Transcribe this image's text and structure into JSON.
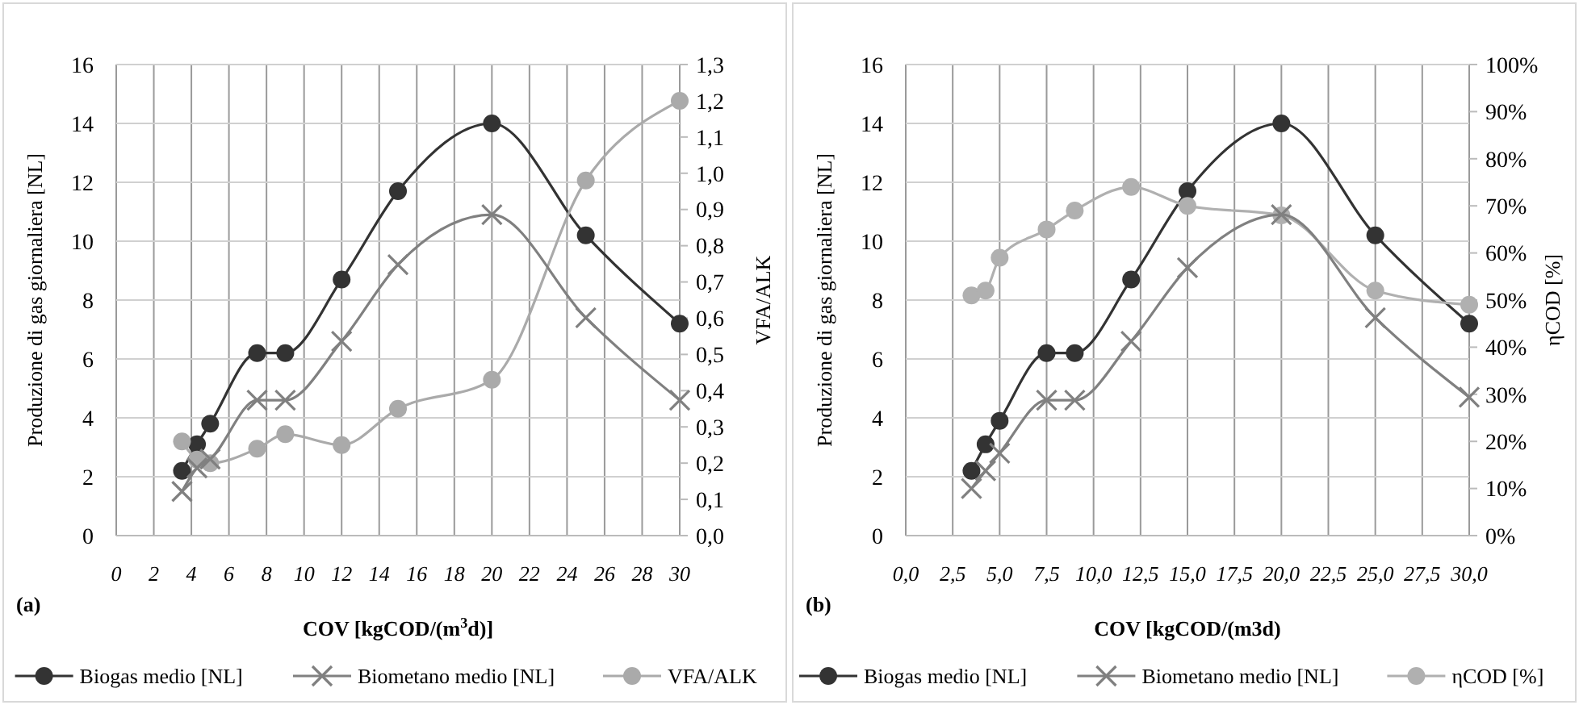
{
  "chart_data": [
    {
      "type": "line",
      "xlabel": "COV [kgCOD/(m$^{3}$d)]",
      "ylabel": "Produzione di gas giornaliera [NL]",
      "y2label": "VFA/ALK",
      "annotations": [
        "(a)"
      ],
      "x": [
        3.5,
        4.3,
        5,
        7.5,
        9,
        12,
        15,
        20,
        25,
        30
      ],
      "xlim": [
        0,
        30
      ],
      "xticks": [
        0,
        2,
        4,
        6,
        8,
        10,
        12,
        14,
        16,
        18,
        20,
        22,
        24,
        26,
        28,
        30
      ],
      "ylim": [
        0,
        16
      ],
      "yticks": [
        0,
        2,
        4,
        6,
        8,
        10,
        12,
        14,
        16
      ],
      "y2lim": [
        0,
        1.3
      ],
      "y2ticks": [
        {
          "value": 0,
          "label": "0,0"
        },
        {
          "value": 0.1,
          "label": "0,1"
        },
        {
          "value": 0.2,
          "label": "0,2"
        },
        {
          "value": 0.3,
          "label": "0,3"
        },
        {
          "value": 0.4,
          "label": "0,4"
        },
        {
          "value": 0.5,
          "label": "0,5"
        },
        {
          "value": 0.6,
          "label": "0,6"
        },
        {
          "value": 0.7,
          "label": "0,7"
        },
        {
          "value": 0.8,
          "label": "0,8"
        },
        {
          "value": 0.9,
          "label": "0,9"
        },
        {
          "value": 1,
          "label": "1,0"
        },
        {
          "value": 1.1,
          "label": "1,1"
        },
        {
          "value": 1.2,
          "label": "1,2"
        },
        {
          "value": 1.3,
          "label": "1,3"
        }
      ],
      "grid": true,
      "legend": "bottom",
      "line_style": "solid",
      "series": [
        {
          "name": "Biogas medio [NL]",
          "color": "#333333",
          "marker": "circle",
          "values": [
            2.2,
            3.1,
            3.8,
            6.2,
            6.2,
            8.7,
            11.7,
            14,
            10.2,
            7.2
          ]
        },
        {
          "name": "Biometano medio [NL]",
          "color": "#808080",
          "marker": "cross",
          "values": [
            1.5,
            2.3,
            2.6,
            4.6,
            4.6,
            6.6,
            9.2,
            10.9,
            7.4,
            4.6
          ]
        },
        {
          "name": "VFA/ALK",
          "color": "#aaaaaa",
          "marker": "circle",
          "axis": "y2",
          "values": [
            0.26,
            0.21,
            0.2,
            0.24,
            0.28,
            0.25,
            0.35,
            0.43,
            0.98,
            1.2
          ]
        }
      ]
    },
    {
      "type": "line",
      "xlabel": "COV [kgCOD/(m3d)",
      "ylabel": "Produzione di gas giornaliera [NL]",
      "y2label": "ηCOD [%]",
      "annotations": [
        "(b)"
      ],
      "x": [
        3.5,
        4.25,
        5,
        7.5,
        9,
        12,
        15,
        20,
        25,
        30
      ],
      "xlim": [
        0,
        30
      ],
      "xticks": [
        {
          "value": 0,
          "label": "0,0"
        },
        {
          "value": 2.5,
          "label": "2,5"
        },
        {
          "value": 5,
          "label": "5,0"
        },
        {
          "value": 7.5,
          "label": "7,5"
        },
        {
          "value": 10,
          "label": "10,0"
        },
        {
          "value": 12.5,
          "label": "12,5"
        },
        {
          "value": 15,
          "label": "15,0"
        },
        {
          "value": 17.5,
          "label": "17,5"
        },
        {
          "value": 20,
          "label": "20,0"
        },
        {
          "value": 22.5,
          "label": "22,5"
        },
        {
          "value": 25,
          "label": "25,0"
        },
        {
          "value": 27.5,
          "label": "27,5"
        },
        {
          "value": 30,
          "label": "30,0"
        }
      ],
      "ylim": [
        0,
        16
      ],
      "yticks": [
        0,
        2,
        4,
        6,
        8,
        10,
        12,
        14,
        16
      ],
      "y2lim": [
        0,
        100
      ],
      "y2ticks": [
        {
          "value": 0,
          "label": "0%"
        },
        {
          "value": 10,
          "label": "10%"
        },
        {
          "value": 20,
          "label": "20%"
        },
        {
          "value": 30,
          "label": "30%"
        },
        {
          "value": 40,
          "label": "40%"
        },
        {
          "value": 50,
          "label": "50%"
        },
        {
          "value": 60,
          "label": "60%"
        },
        {
          "value": 70,
          "label": "70%"
        },
        {
          "value": 80,
          "label": "80%"
        },
        {
          "value": 90,
          "label": "90%"
        },
        {
          "value": 100,
          "label": "100%"
        }
      ],
      "grid": true,
      "legend": "bottom",
      "line_style": "solid",
      "series": [
        {
          "name": "Biogas medio [NL]",
          "color": "#333333",
          "marker": "circle",
          "values": [
            2.2,
            3.1,
            3.9,
            6.2,
            6.2,
            8.7,
            11.7,
            14,
            10.2,
            7.2
          ]
        },
        {
          "name": "Biometano medio [NL]",
          "color": "#808080",
          "marker": "cross",
          "values": [
            1.6,
            2.2,
            2.8,
            4.6,
            4.6,
            6.6,
            9.1,
            10.9,
            7.4,
            4.7
          ]
        },
        {
          "name": "ηCOD [%]",
          "color": "#b0b0b0",
          "marker": "circle",
          "axis": "y2",
          "values": [
            51,
            52,
            59,
            65,
            69,
            74,
            70,
            68,
            52,
            49
          ]
        }
      ]
    }
  ]
}
